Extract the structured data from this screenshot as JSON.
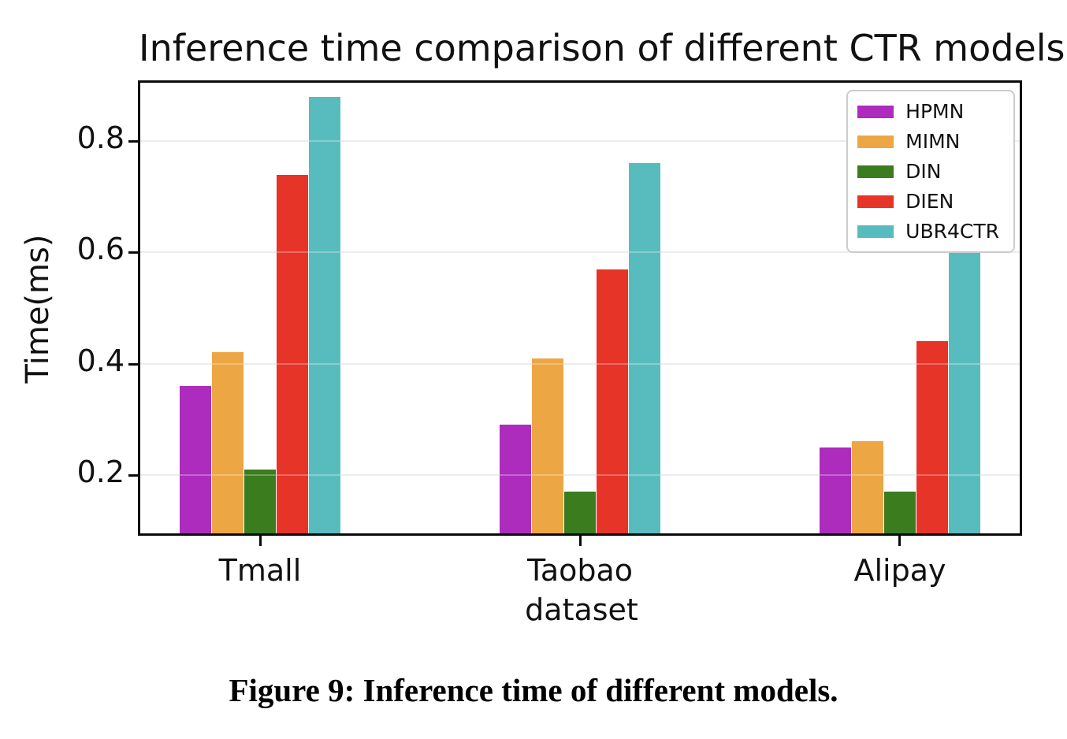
{
  "chart_data": {
    "type": "bar",
    "title": "Inference time comparison of different CTR models",
    "xlabel": "dataset",
    "ylabel": "Time(ms)",
    "categories": [
      "Tmall",
      "Taobao",
      "Alipay"
    ],
    "series": [
      {
        "name": "HPMN",
        "color": "#ad2bbd",
        "values": [
          0.36,
          0.29,
          0.25
        ]
      },
      {
        "name": "MIMN",
        "color": "#eda644",
        "values": [
          0.42,
          0.41,
          0.26
        ]
      },
      {
        "name": "DIN",
        "color": "#3a7c1e",
        "values": [
          0.21,
          0.17,
          0.17
        ]
      },
      {
        "name": "DIEN",
        "color": "#e73429",
        "values": [
          0.74,
          0.57,
          0.44
        ]
      },
      {
        "name": "UBR4CTR",
        "color": "#58bcbe",
        "values": [
          0.88,
          0.76,
          0.6
        ]
      }
    ],
    "yticks": [
      0.2,
      0.4,
      0.6,
      0.8
    ],
    "ylim": [
      0.095,
      0.905
    ],
    "grid": "horizontal",
    "legend_position": "upper right",
    "grid_color": "#e7e7e7"
  },
  "caption": "Figure 9: Inference time of different models."
}
